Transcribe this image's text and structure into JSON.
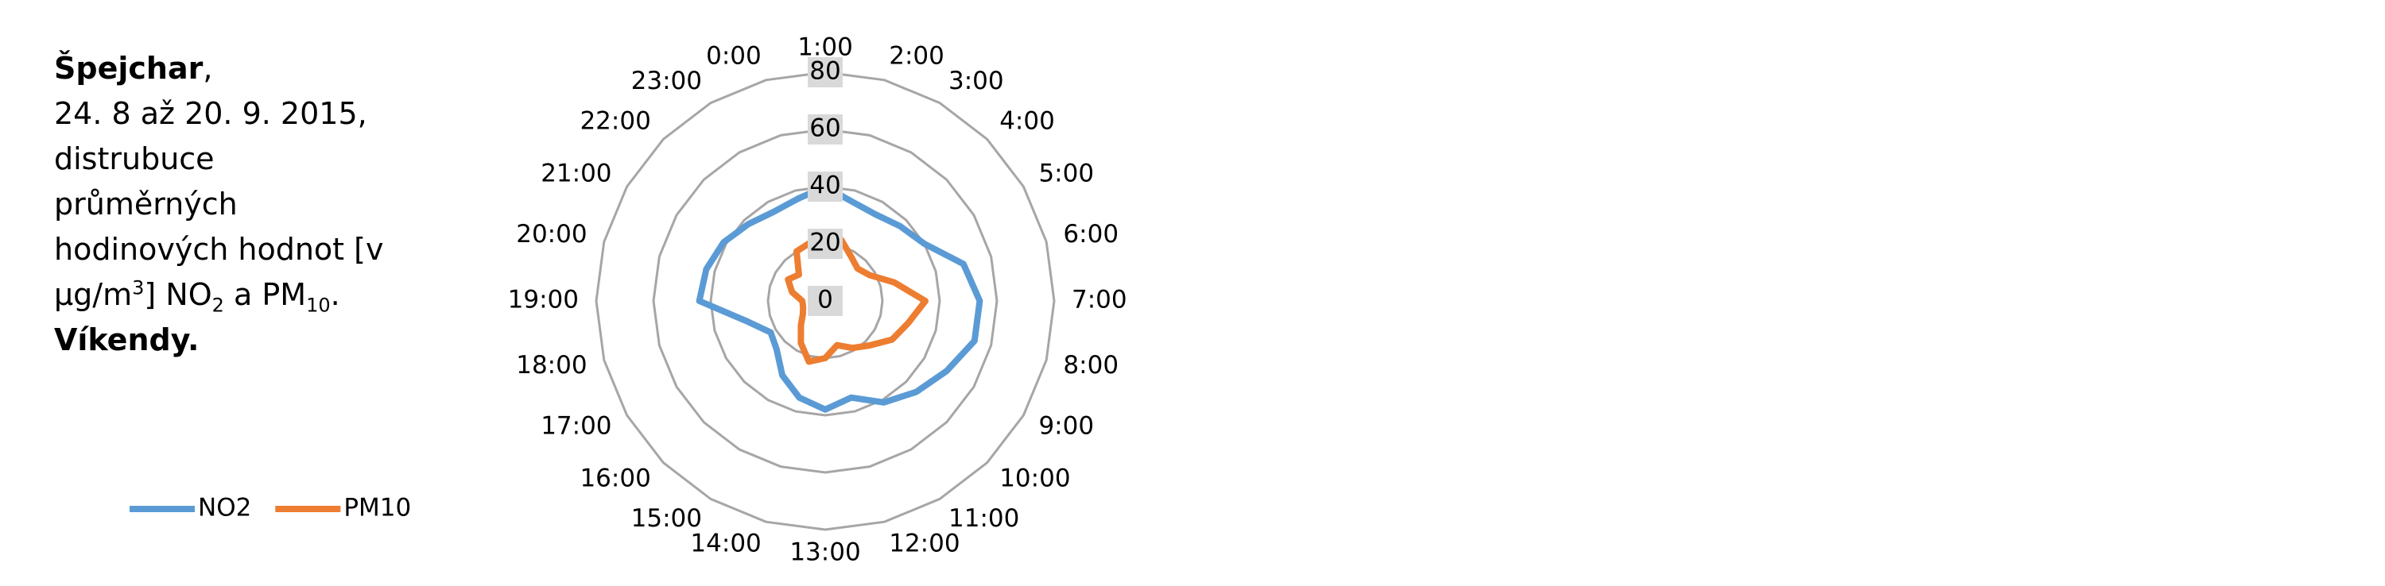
{
  "chart_data": {
    "type": "radar",
    "title": [
      "Špejchar",
      ",",
      "24. 8 až 20. 9. 2015,",
      "distrubuce",
      "průměrných",
      "hodinových hodnot [v",
      "μg/m",
      "3",
      "] NO",
      "2",
      " a PM",
      "10",
      ".",
      "Víkendy."
    ],
    "categories": [
      "1:00",
      "2:00",
      "3:00",
      "4:00",
      "5:00",
      "6:00",
      "7:00",
      "8:00",
      "9:00",
      "10:00",
      "11:00",
      "12:00",
      "13:00",
      "14:00",
      "15:00",
      "16:00",
      "17:00",
      "18:00",
      "19:00",
      "20:00",
      "21:00",
      "22:00",
      "23:00",
      "0:00"
    ],
    "series": [
      {
        "name": "NO2",
        "color": "#5b9bd5",
        "values": [
          40,
          36,
          35,
          37,
          40,
          50,
          54,
          54,
          49,
          45,
          41,
          35,
          38,
          35,
          30,
          24,
          22,
          28,
          44,
          43,
          41,
          38,
          36,
          37
        ]
      },
      {
        "name": "PM10",
        "color": "#ed7d31",
        "values": [
          22,
          22,
          18,
          16,
          18,
          25,
          35,
          30,
          27,
          22,
          19,
          16,
          20,
          22,
          17,
          12,
          9,
          8,
          8,
          12,
          15,
          13,
          20,
          21
        ]
      }
    ],
    "ylim": [
      0,
      80
    ],
    "yticks": [
      0,
      20,
      40,
      60,
      80
    ],
    "grid": true,
    "legend": "bottom-left"
  }
}
